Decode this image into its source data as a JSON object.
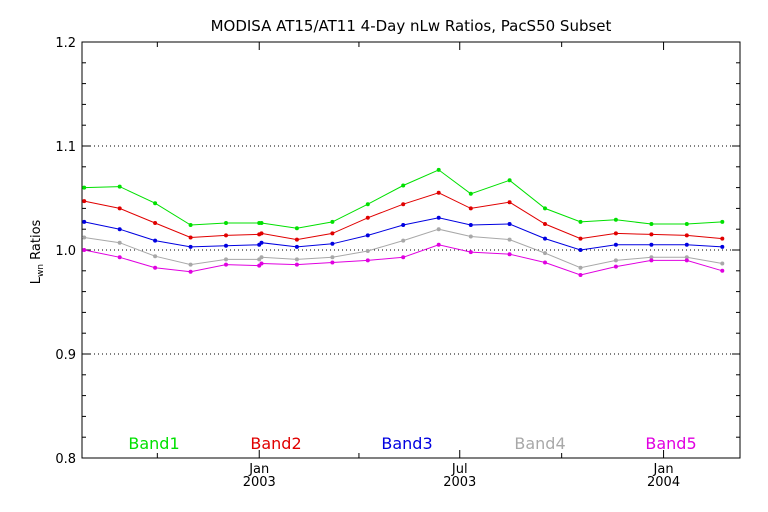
{
  "chart_data": {
    "type": "line",
    "title": "MODISA AT15/AT11 4-Day nLw Ratios, PacS50 Subset",
    "ylabel": "Lwn Ratios",
    "ylabel_main": "L",
    "ylabel_sub": "wn",
    "ylabel_rest": " Ratios",
    "xlabel": "",
    "xlim": [
      "2002-07-25",
      "2004-03-10"
    ],
    "ylim": [
      0.8,
      1.2
    ],
    "yticks": [
      "0.8",
      "0.9",
      "1.0",
      "1.1",
      "1.2"
    ],
    "xticks_major": [
      {
        "date": "2003-01-01",
        "line1": "Jan",
        "line2": "2003"
      },
      {
        "date": "2003-07-01",
        "line1": "Jul",
        "line2": "2003"
      },
      {
        "date": "2004-01-01",
        "line1": "Jan",
        "line2": "2004"
      }
    ],
    "xticks_minor": [
      "2002-10-01",
      "2003-04-01",
      "2003-10-01"
    ],
    "reference_lines": [
      0.9,
      1.0,
      1.1
    ],
    "grid": "dotted horizontal at 0.9, 1.0, 1.1",
    "legend_placement": "bottom inside",
    "x": [
      "2002-07-27",
      "2002-08-28",
      "2002-09-29",
      "2002-10-31",
      "2002-12-02",
      "2003-01-01",
      "2003-01-03",
      "2003-02-04",
      "2003-03-08",
      "2003-04-09",
      "2003-05-11",
      "2003-06-12",
      "2003-07-11",
      "2003-08-15",
      "2003-09-16",
      "2003-10-18",
      "2003-11-19",
      "2003-12-21",
      "2004-01-22",
      "2004-02-23"
    ],
    "series": [
      {
        "name": "Band1",
        "color": "#00e000",
        "values": [
          1.06,
          1.061,
          1.045,
          1.024,
          1.026,
          1.026,
          1.026,
          1.021,
          1.027,
          1.044,
          1.062,
          1.077,
          1.054,
          1.067,
          1.04,
          1.027,
          1.029,
          1.025,
          1.025,
          1.027
        ]
      },
      {
        "name": "Band2",
        "color": "#e00000",
        "values": [
          1.047,
          1.04,
          1.026,
          1.012,
          1.014,
          1.015,
          1.016,
          1.01,
          1.016,
          1.031,
          1.044,
          1.055,
          1.04,
          1.046,
          1.025,
          1.011,
          1.016,
          1.015,
          1.014,
          1.011
        ]
      },
      {
        "name": "Band3",
        "color": "#0000e0",
        "values": [
          1.027,
          1.02,
          1.009,
          1.003,
          1.004,
          1.005,
          1.007,
          1.003,
          1.006,
          1.014,
          1.024,
          1.031,
          1.024,
          1.025,
          1.011,
          1.0,
          1.005,
          1.005,
          1.005,
          1.003
        ]
      },
      {
        "name": "Band4",
        "color": "#a8a8a8",
        "values": [
          1.012,
          1.007,
          0.994,
          0.986,
          0.991,
          0.991,
          0.993,
          0.991,
          0.993,
          0.999,
          1.009,
          1.02,
          1.013,
          1.01,
          0.997,
          0.983,
          0.99,
          0.993,
          0.993,
          0.987
        ]
      },
      {
        "name": "Band5",
        "color": "#e000e0",
        "values": [
          1.0,
          0.993,
          0.983,
          0.979,
          0.986,
          0.985,
          0.987,
          0.986,
          0.988,
          0.99,
          0.993,
          1.005,
          0.998,
          0.996,
          0.988,
          0.976,
          0.984,
          0.99,
          0.99,
          0.98
        ]
      }
    ]
  }
}
